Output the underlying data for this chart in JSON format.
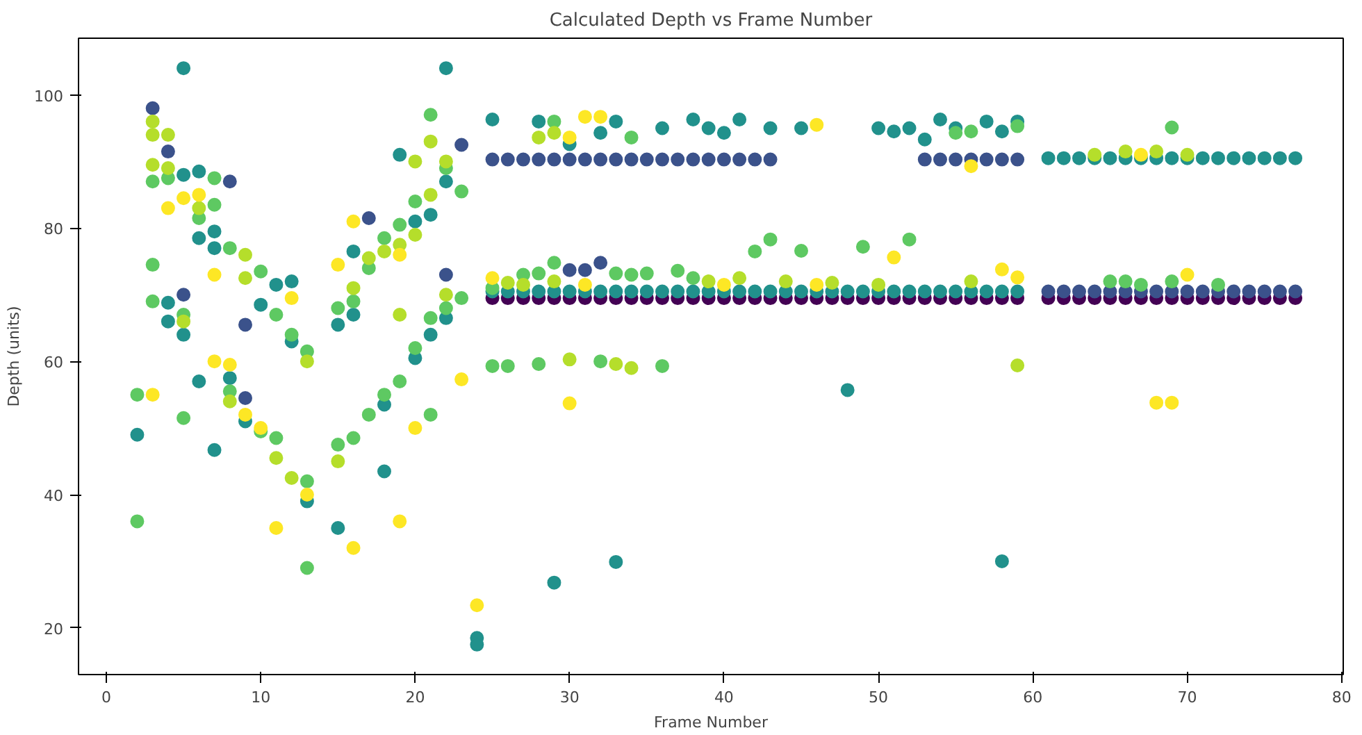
{
  "chart_data": {
    "type": "scatter",
    "title": "Calculated Depth vs Frame Number",
    "xlabel": "Frame Number",
    "ylabel": "Depth (units)",
    "xlim": [
      -1.8,
      80.1
    ],
    "ylim": [
      13,
      108.5
    ],
    "xticks": [
      0,
      10,
      20,
      30,
      40,
      50,
      60,
      70,
      80
    ],
    "yticks": [
      20,
      40,
      60,
      80,
      100
    ],
    "grid": false,
    "marker": "circle",
    "series": [
      {
        "color": "#440154",
        "x": [
          25,
          26,
          27,
          28,
          29,
          30,
          31,
          32,
          33,
          34,
          35,
          36,
          37,
          38,
          39,
          40,
          41,
          42,
          43,
          44,
          45,
          46,
          47,
          48,
          49,
          50,
          51,
          52,
          53,
          54,
          55,
          56,
          57,
          58,
          59,
          61,
          62,
          63,
          64,
          65,
          66,
          67,
          68,
          69,
          70,
          71,
          72,
          73,
          74,
          75,
          76,
          77
        ],
        "values": [
          69.5,
          69.5,
          69.5,
          69.5,
          69.5,
          69.5,
          69.5,
          69.5,
          69.5,
          69.5,
          69.5,
          69.5,
          69.5,
          69.5,
          69.5,
          69.5,
          69.5,
          69.5,
          69.5,
          69.5,
          69.5,
          69.5,
          69.5,
          69.5,
          69.5,
          69.5,
          69.5,
          69.5,
          69.5,
          69.5,
          69.5,
          69.5,
          69.5,
          69.5,
          69.5,
          69.5,
          69.5,
          69.5,
          69.5,
          69.5,
          69.5,
          69.5,
          69.5,
          69.5,
          69.5,
          69.5,
          69.5,
          69.5,
          69.5,
          69.5,
          69.5,
          69.5
        ]
      },
      {
        "color": "#3b528b",
        "x": [
          3,
          4,
          5,
          8,
          9,
          9,
          17,
          22,
          23,
          30,
          31,
          32,
          25,
          26,
          27,
          28,
          29,
          30,
          31,
          32,
          33,
          34,
          35,
          36,
          37,
          38,
          39,
          40,
          41,
          42,
          43,
          53,
          54,
          55,
          56,
          57,
          58,
          59,
          61,
          62,
          63,
          64,
          65,
          66,
          67,
          68,
          69,
          70,
          71,
          72,
          73,
          74,
          75,
          76,
          77
        ],
        "values": [
          98,
          91.5,
          70,
          87,
          65.5,
          54.5,
          81.5,
          73,
          92.5,
          73.7,
          73.7,
          74.8,
          90.3,
          90.3,
          90.3,
          90.3,
          90.3,
          90.3,
          90.3,
          90.3,
          90.3,
          90.3,
          90.3,
          90.3,
          90.3,
          90.3,
          90.3,
          90.3,
          90.3,
          90.3,
          90.3,
          90.3,
          90.3,
          90.3,
          90.3,
          90.3,
          90.3,
          90.3,
          70.5,
          70.5,
          70.5,
          70.5,
          70.5,
          70.5,
          70.5,
          70.5,
          70.5,
          70.5,
          70.5,
          70.5,
          70.5,
          70.5,
          70.5,
          70.5,
          70.5
        ]
      },
      {
        "color": "#21918c",
        "x": [
          2,
          4,
          4,
          5,
          5,
          5,
          6,
          6,
          6,
          7,
          7,
          7,
          8,
          9,
          10,
          11,
          12,
          12,
          13,
          15,
          15,
          16,
          16,
          18,
          18,
          19,
          20,
          20,
          21,
          21,
          22,
          22,
          22,
          24,
          24,
          29,
          33,
          48,
          58,
          25,
          28,
          30,
          32,
          33,
          36,
          38,
          39,
          40,
          41,
          43,
          45,
          50,
          51,
          52,
          53,
          54,
          55,
          57,
          58,
          59,
          25,
          26,
          27,
          28,
          29,
          30,
          31,
          32,
          33,
          34,
          35,
          36,
          37,
          38,
          39,
          40,
          41,
          42,
          43,
          44,
          45,
          46,
          47,
          48,
          49,
          50,
          51,
          52,
          53,
          54,
          55,
          56,
          57,
          58,
          59,
          61,
          62,
          63,
          64,
          65,
          66,
          67,
          68,
          69,
          70,
          71,
          72,
          73,
          74,
          75,
          76,
          77
        ],
        "values": [
          49,
          68.8,
          66,
          104,
          88,
          64,
          88.5,
          78.5,
          57,
          79.5,
          77,
          46.7,
          57.5,
          51,
          68.5,
          71.5,
          72,
          63,
          39,
          65.5,
          35,
          76.5,
          67,
          53.5,
          43.5,
          91,
          81,
          60.5,
          82,
          64,
          104,
          87,
          66.5,
          18.5,
          17.5,
          26.8,
          29.9,
          55.7,
          30,
          96.3,
          96,
          92.6,
          94.3,
          96,
          95,
          96.3,
          95,
          94.3,
          96.3,
          95,
          95,
          95,
          94.5,
          95,
          93.3,
          96.3,
          95,
          96,
          94.5,
          96,
          70.5,
          70.5,
          70.5,
          70.5,
          70.5,
          70.5,
          70.5,
          70.5,
          70.5,
          70.5,
          70.5,
          70.5,
          70.5,
          70.5,
          70.5,
          70.5,
          70.5,
          70.5,
          70.5,
          70.5,
          70.5,
          70.5,
          70.5,
          70.5,
          70.5,
          70.5,
          70.5,
          70.5,
          70.5,
          70.5,
          70.5,
          70.5,
          70.5,
          70.5,
          70.5,
          90.5,
          90.5,
          90.5,
          90.5,
          90.5,
          90.5,
          90.5,
          90.5,
          90.5,
          90.5,
          90.5,
          90.5,
          90.5,
          90.5,
          90.5,
          90.5,
          90.5
        ]
      },
      {
        "color": "#5ec962",
        "x": [
          2,
          2,
          3,
          3,
          3,
          4,
          5,
          5,
          6,
          7,
          7,
          8,
          8,
          10,
          10,
          11,
          11,
          12,
          13,
          13,
          13,
          15,
          15,
          16,
          16,
          17,
          17,
          18,
          18,
          19,
          19,
          20,
          20,
          21,
          21,
          21,
          22,
          22,
          23,
          23,
          25,
          26,
          28,
          29,
          29,
          32,
          33,
          34,
          36,
          37,
          42,
          43,
          45,
          49,
          52,
          55,
          56,
          59,
          69,
          25,
          27,
          28,
          34,
          35,
          38,
          65,
          66,
          67,
          69,
          72
        ],
        "values": [
          55,
          36,
          74.5,
          69,
          87,
          87.5,
          67,
          51.5,
          81.5,
          87.5,
          83.5,
          77,
          55.5,
          73.5,
          49.5,
          67,
          48.5,
          64,
          61.5,
          42,
          29,
          68,
          47.5,
          69,
          48.5,
          74,
          52,
          78.5,
          55,
          80.5,
          57,
          84,
          62,
          97,
          66.5,
          52,
          89,
          68,
          85.5,
          69.5,
          59.3,
          59.3,
          59.6,
          96,
          74.8,
          60,
          73.2,
          93.6,
          59.3,
          73.6,
          76.5,
          78.3,
          76.6,
          77.2,
          78.3,
          94.3,
          94.5,
          95.3,
          95.1,
          71,
          73,
          73.2,
          73,
          73.2,
          72.5,
          72,
          72,
          71.5,
          72,
          71.5
        ]
      },
      {
        "color": "#b5de2b",
        "x": [
          3,
          3,
          3,
          4,
          4,
          5,
          6,
          8,
          9,
          9,
          11,
          12,
          13,
          15,
          16,
          17,
          18,
          19,
          19,
          20,
          20,
          21,
          21,
          22,
          22,
          26,
          27,
          28,
          29,
          29,
          30,
          33,
          34,
          39,
          41,
          44,
          47,
          50,
          56,
          59,
          64,
          66,
          68,
          70
        ],
        "values": [
          96,
          94,
          89.5,
          94,
          89,
          66,
          83,
          54,
          76,
          72.5,
          45.5,
          42.5,
          60,
          45,
          71,
          75.5,
          76.5,
          77.5,
          67,
          90,
          79,
          93,
          85,
          90,
          70,
          71.8,
          71.5,
          93.6,
          72,
          94.3,
          60.3,
          59.6,
          59,
          72,
          72.5,
          72,
          71.8,
          71.5,
          72,
          59.4,
          91,
          91.5,
          91.5,
          91
        ]
      },
      {
        "color": "#fde725",
        "x": [
          3,
          4,
          5,
          6,
          7,
          7,
          8,
          9,
          10,
          11,
          12,
          13,
          15,
          16,
          16,
          19,
          19,
          20,
          23,
          24,
          25,
          30,
          30,
          31,
          31,
          32,
          40,
          46,
          46,
          51,
          56,
          58,
          59,
          68,
          69,
          70,
          67
        ],
        "values": [
          55,
          83,
          84.5,
          85,
          73,
          60,
          59.5,
          52,
          50,
          35,
          69.5,
          40,
          74.5,
          81,
          32,
          76,
          36,
          50,
          57.3,
          23.4,
          72.5,
          93.6,
          53.7,
          96.7,
          71.5,
          96.7,
          71.5,
          95.5,
          71.5,
          75.6,
          89.3,
          73.8,
          72.6,
          53.8,
          53.8,
          73,
          91
        ]
      }
    ]
  }
}
